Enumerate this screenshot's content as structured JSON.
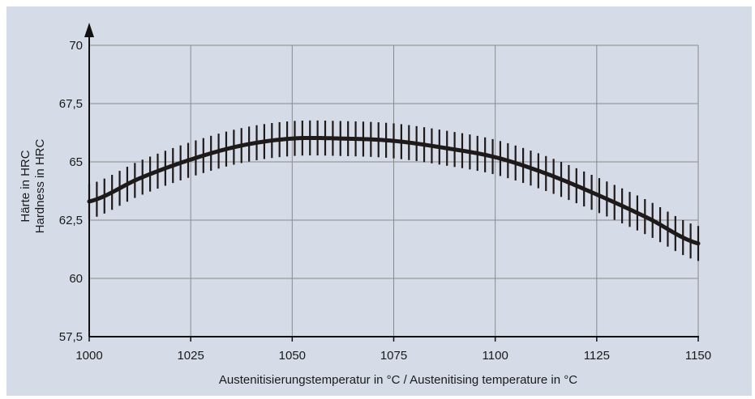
{
  "chart_data": {
    "type": "line",
    "xlabel": "Austenitisierungstemperatur in °C / Austenitising temperature in °C",
    "ylabel_line1": "Härte in HRC",
    "ylabel_line2": "Hardness in HRC",
    "xlim": [
      1000,
      1150
    ],
    "ylim": [
      57.5,
      70
    ],
    "x_ticks": [
      "1000",
      "1025",
      "1050",
      "1075",
      "1100",
      "1125",
      "1150"
    ],
    "y_ticks": [
      "57,5",
      "60",
      "62,5",
      "65",
      "67,5",
      "70"
    ],
    "x_tick_values": [
      1000,
      1025,
      1050,
      1075,
      1100,
      1125,
      1150
    ],
    "y_tick_values": [
      57.5,
      60,
      62.5,
      65,
      67.5,
      70
    ],
    "grid": true,
    "series": [
      {
        "x": [
          1000,
          1012.5,
          1025,
          1037.5,
          1050,
          1062.5,
          1075,
          1087.5,
          1100,
          1112.5,
          1125,
          1137.5,
          1150
        ],
        "y": [
          63.3,
          64.3,
          65.1,
          65.7,
          66.0,
          66.0,
          65.9,
          65.6,
          65.2,
          64.5,
          63.6,
          62.6,
          61.5
        ],
        "scatter_band": 0.75
      }
    ],
    "colors": {
      "background": "#d5dbe7",
      "grid": "#8a8a8a",
      "line": "#1f1a1a"
    }
  }
}
